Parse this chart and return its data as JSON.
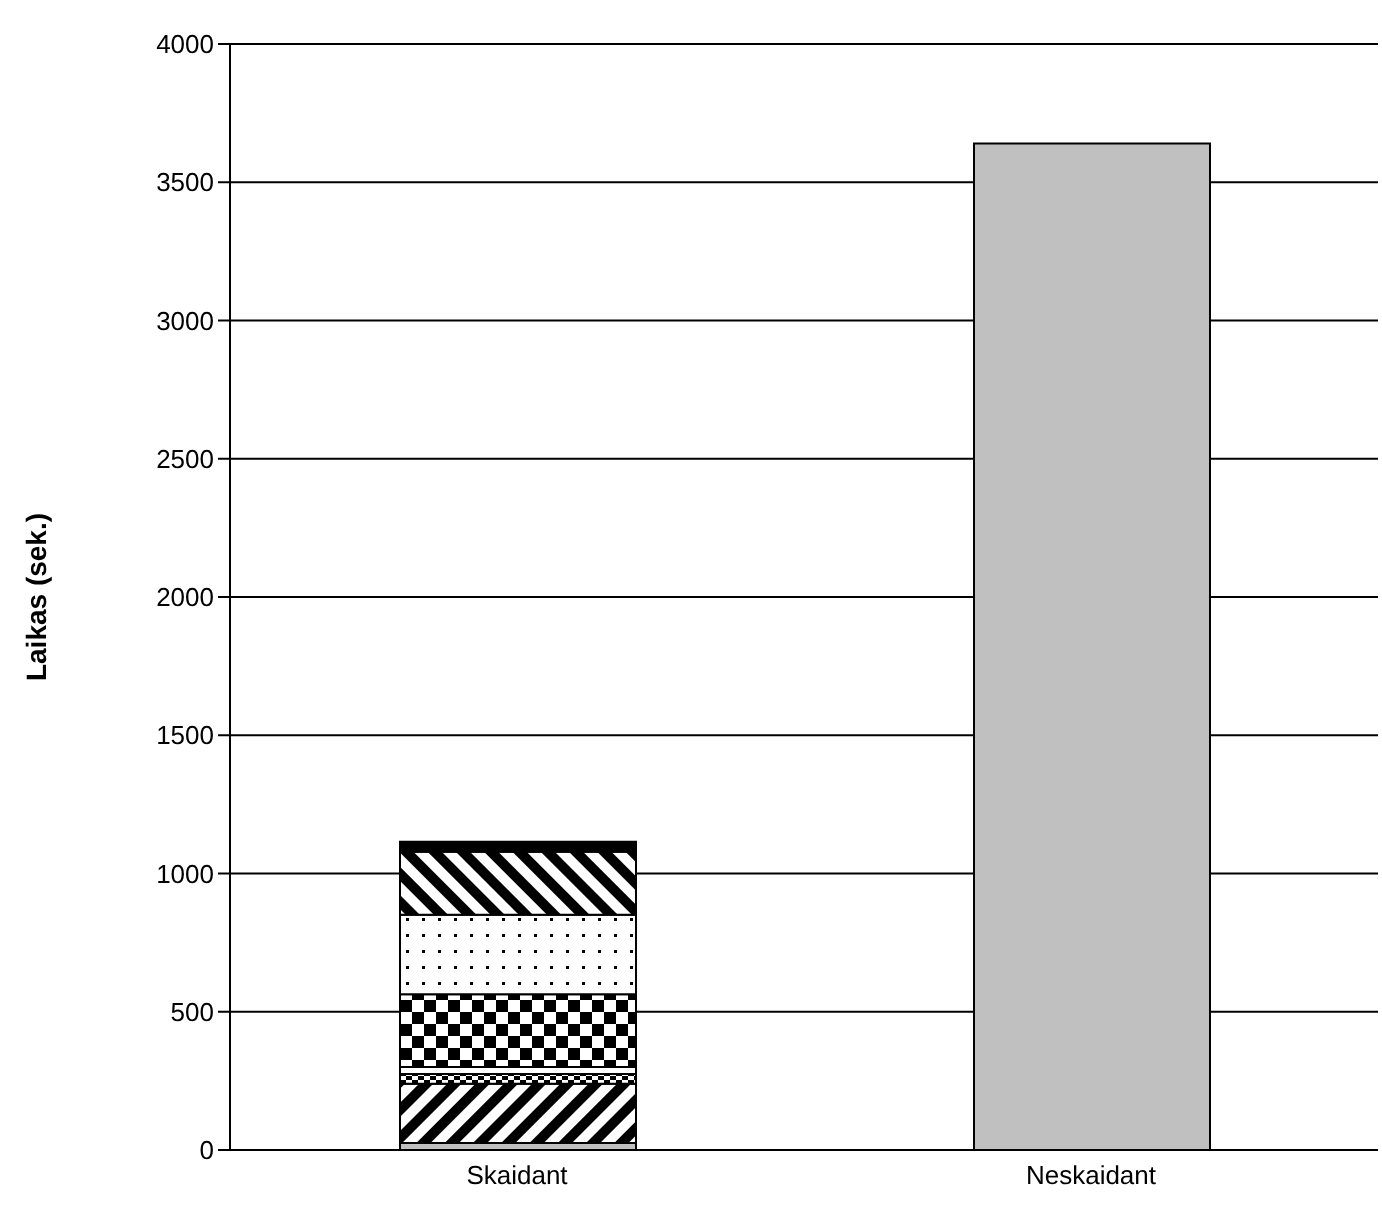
{
  "chart_data": {
    "type": "bar",
    "stacked": true,
    "ylabel": "Laikas (sek.)",
    "categories": [
      "Skaidant",
      "Neskaidant"
    ],
    "series": [
      {
        "color": "#c0c0c0",
        "values": [
          25,
          null
        ]
      },
      {
        "color": "#000000",
        "values": [
          215,
          null
        ]
      },
      {
        "color": "#000000",
        "values": [
          35,
          null
        ]
      },
      {
        "color": "#ffffff",
        "values": [
          25,
          null
        ]
      },
      {
        "color": "#000000",
        "values": [
          263,
          null
        ]
      },
      {
        "color": "#000000",
        "values": [
          288,
          null
        ]
      },
      {
        "color": "#000000",
        "values": [
          228,
          null
        ]
      },
      {
        "color": "#000000",
        "values": [
          36,
          null
        ]
      },
      {
        "color": "#c0c0c0",
        "values": [
          null,
          3640
        ]
      }
    ],
    "ylim": [
      0,
      4000
    ],
    "yticks": [
      0,
      500,
      1000,
      1500,
      2000,
      2500,
      3000,
      3500,
      4000
    ],
    "grid": "y"
  }
}
